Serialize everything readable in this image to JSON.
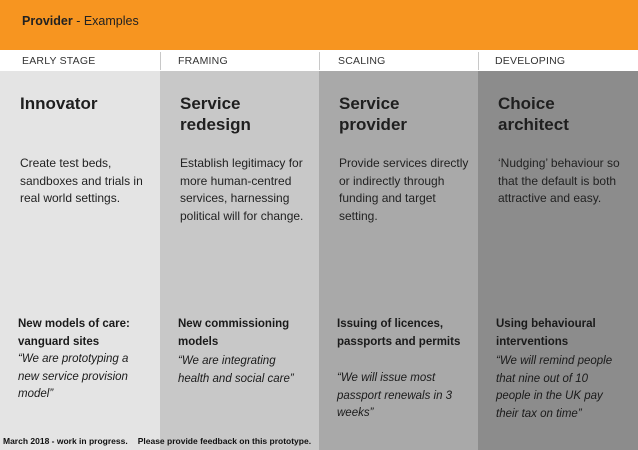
{
  "header": {
    "title_bold": "Provider",
    "title_rest": " - Examples"
  },
  "stages": [
    "EARLY STAGE",
    "FRAMING",
    "SCALING",
    "DEVELOPING"
  ],
  "columns": [
    {
      "title_lines": [
        "Innovator"
      ],
      "description": "Create test beds, sandboxes and trials in real world settings.",
      "example_title": "New models of care: vanguard sites",
      "quote": "“We are prototyping a new service provision model”",
      "bg": "#e4e4e4"
    },
    {
      "title_lines": [
        "Service",
        "redesign"
      ],
      "description": "Establish legitimacy for more human-centred services, harnessing political will for change.",
      "example_title": "New commissioning models",
      "quote": "“We are integrating health and social care”",
      "bg": "#c8c8c8"
    },
    {
      "title_lines": [
        "Service",
        "provider"
      ],
      "description": "Provide services directly or indirectly through funding and target setting.",
      "example_title": "Issuing of licences, passports and permits",
      "quote": "“We will issue most passport renewals in 3 weeks”",
      "bg": "#a9a9a9"
    },
    {
      "title_lines": [
        "Choice",
        "architect"
      ],
      "description": "‘Nudging’ behaviour so that the default is both attractive and easy.",
      "example_title": "Using behavioural interventions",
      "quote": "“We will remind people that nine out of 10 people in the UK pay their tax on time”",
      "bg": "#8c8c8c"
    }
  ],
  "footer": {
    "status": "March 2018 - work in progress.",
    "feedback": "Please provide feedback on this prototype."
  },
  "colors": {
    "header_orange": "#f79520"
  }
}
